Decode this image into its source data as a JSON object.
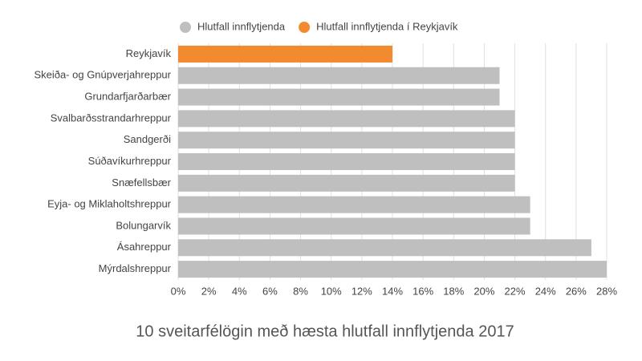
{
  "chart_data": {
    "type": "hbar",
    "title": "10 sveitarfélögin með hæsta hlutfall innflytjenda 2017",
    "categories": [
      "Reykjavík",
      "Skeiða- og Gnúpverjahreppur",
      "Grundarfjarðarbær",
      "Svalbarðsstrandarhreppur",
      "Sandgerði",
      "Súðavíkurhreppur",
      "Snæfellsbær",
      "Eyja- og Miklaholtshreppur",
      "Bolungarvík",
      "Ásahreppur",
      "Mýrdalshreppur"
    ],
    "series": [
      {
        "name": "Hlutfall innflytjenda",
        "color": "#bfbfbf",
        "values": [
          null,
          21,
          21,
          22,
          22,
          22,
          22,
          23,
          23,
          27,
          28
        ]
      },
      {
        "name": "Hlutfall innflytjenda í Reykjavík",
        "color": "#f28b30",
        "values": [
          14,
          null,
          null,
          null,
          null,
          null,
          null,
          null,
          null,
          null,
          null
        ]
      }
    ],
    "xlim": [
      0,
      28
    ],
    "xticks": [
      {
        "value": 0,
        "label": "0%"
      },
      {
        "value": 2,
        "label": "2%"
      },
      {
        "value": 4,
        "label": "4%"
      },
      {
        "value": 6,
        "label": "6%"
      },
      {
        "value": 8,
        "label": "8%"
      },
      {
        "value": 10,
        "label": "10%"
      },
      {
        "value": 12,
        "label": "12%"
      },
      {
        "value": 14,
        "label": "14%"
      },
      {
        "value": 16,
        "label": "16%"
      },
      {
        "value": 18,
        "label": "18%"
      },
      {
        "value": 20,
        "label": "20%"
      },
      {
        "value": 22,
        "label": "22%"
      },
      {
        "value": 24,
        "label": "24%"
      },
      {
        "value": 26,
        "label": "26%"
      },
      {
        "value": 28,
        "label": "28%"
      }
    ],
    "grid": true
  }
}
